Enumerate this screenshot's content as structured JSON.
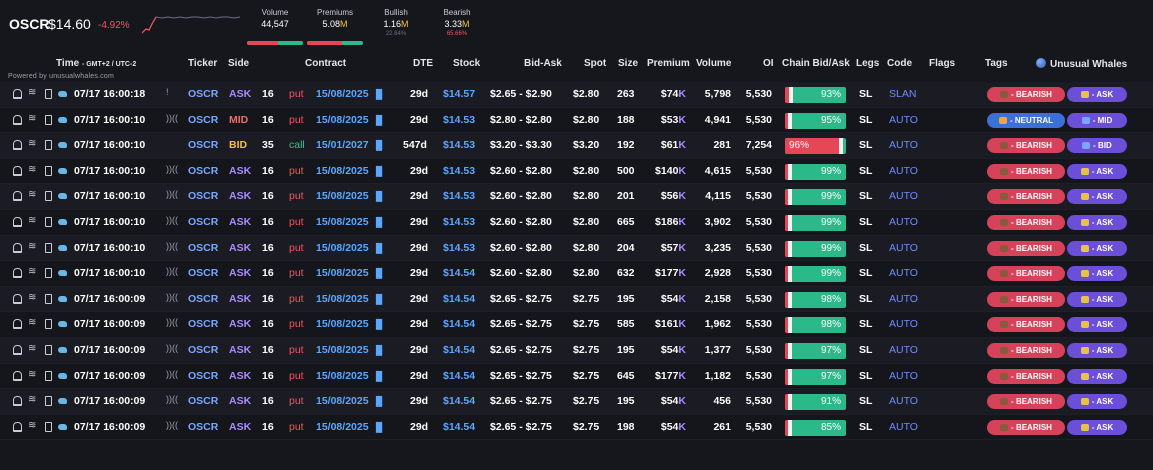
{
  "summary": {
    "ticker": "OSCR",
    "price": "$14.60",
    "change": "-4.92%",
    "stats": [
      {
        "label": "Volume",
        "value": "44,547",
        "unit": "",
        "sub": "",
        "bar_red": 0.55
      },
      {
        "label": "Premiums",
        "value": "5.08",
        "unit": "M",
        "sub": "",
        "bar_red": 0.62
      },
      {
        "label": "Bullish",
        "value": "1.16",
        "unit": "M",
        "sub": "22.84%",
        "bar_red": 0
      },
      {
        "label": "Bearish",
        "value": "3.33",
        "unit": "M",
        "sub": "65.66%",
        "bar_red": 0
      }
    ]
  },
  "header": {
    "time": "Time",
    "time_sub": "- GMT+2 / UTC-2",
    "powered": "Powered by unusualwhales.com",
    "ticker": "Ticker",
    "side": "Side",
    "contract": "Contract",
    "dte": "DTE",
    "stock": "Stock",
    "bid_ask": "Bid-Ask",
    "spot": "Spot",
    "size": "Size",
    "premium": "Premium",
    "volume": "Volume",
    "oi": "OI",
    "chain": "Chain Bid/Ask",
    "legs": "Legs",
    "code": "Code",
    "flags": "Flags",
    "tags": "Tags",
    "brand": "Unusual Whales"
  },
  "colors": {
    "bearish": "#d6425a",
    "neutral": "#3d6fd8",
    "side_tag": "#6c4fd8",
    "chain_green": "#2bb98a",
    "chain_red": "#e54757"
  },
  "rows": [
    {
      "time": "07/17 16:00:18",
      "flag": "!",
      "ticker": "OSCR",
      "side": "ASK",
      "strike": "16",
      "type": "put",
      "exp": "15/08/2025",
      "dte": "29d",
      "stock": "$14.57",
      "bid_ask": "$2.65 - $2.90",
      "spot": "$2.80",
      "size": "263",
      "premium": "$74",
      "premium_unit": "K",
      "volume": "5,798",
      "oi": "5,530",
      "chain": "93%",
      "chain_red": 0.07,
      "legs": "SL",
      "code": "SLAN",
      "sentiment": "BEARISH",
      "side_tag": "ASK"
    },
    {
      "time": "07/17 16:00:10",
      "flag": "))((",
      "ticker": "OSCR",
      "side": "MID",
      "strike": "16",
      "type": "put",
      "exp": "15/08/2025",
      "dte": "29d",
      "stock": "$14.53",
      "bid_ask": "$2.80 - $2.80",
      "spot": "$2.80",
      "size": "188",
      "premium": "$53",
      "premium_unit": "K",
      "volume": "4,941",
      "oi": "5,530",
      "chain": "95%",
      "chain_red": 0.05,
      "legs": "SL",
      "code": "AUTO",
      "sentiment": "NEUTRAL",
      "side_tag": "MID"
    },
    {
      "time": "07/17 16:00:10",
      "flag": "",
      "ticker": "OSCR",
      "side": "BID",
      "strike": "35",
      "type": "call",
      "exp": "15/01/2027",
      "dte": "547d",
      "stock": "$14.53",
      "bid_ask": "$3.20 - $3.30",
      "spot": "$3.20",
      "size": "192",
      "premium": "$61",
      "premium_unit": "K",
      "volume": "281",
      "oi": "7,254",
      "chain": "96%",
      "chain_red": 0.88,
      "legs": "SL",
      "code": "AUTO",
      "sentiment": "BEARISH",
      "side_tag": "BID"
    },
    {
      "time": "07/17 16:00:10",
      "flag": "))((",
      "ticker": "OSCR",
      "side": "ASK",
      "strike": "16",
      "type": "put",
      "exp": "15/08/2025",
      "dte": "29d",
      "stock": "$14.53",
      "bid_ask": "$2.60 - $2.80",
      "spot": "$2.80",
      "size": "500",
      "premium": "$140",
      "premium_unit": "K",
      "volume": "4,615",
      "oi": "5,530",
      "chain": "99%",
      "chain_red": 0.05,
      "legs": "SL",
      "code": "AUTO",
      "sentiment": "BEARISH",
      "side_tag": "ASK"
    },
    {
      "time": "07/17 16:00:10",
      "flag": "))((",
      "ticker": "OSCR",
      "side": "ASK",
      "strike": "16",
      "type": "put",
      "exp": "15/08/2025",
      "dte": "29d",
      "stock": "$14.53",
      "bid_ask": "$2.60 - $2.80",
      "spot": "$2.80",
      "size": "201",
      "premium": "$56",
      "premium_unit": "K",
      "volume": "4,115",
      "oi": "5,530",
      "chain": "99%",
      "chain_red": 0.05,
      "legs": "SL",
      "code": "AUTO",
      "sentiment": "BEARISH",
      "side_tag": "ASK"
    },
    {
      "time": "07/17 16:00:10",
      "flag": "))((",
      "ticker": "OSCR",
      "side": "ASK",
      "strike": "16",
      "type": "put",
      "exp": "15/08/2025",
      "dte": "29d",
      "stock": "$14.53",
      "bid_ask": "$2.60 - $2.80",
      "spot": "$2.80",
      "size": "665",
      "premium": "$186",
      "premium_unit": "K",
      "volume": "3,902",
      "oi": "5,530",
      "chain": "99%",
      "chain_red": 0.05,
      "legs": "SL",
      "code": "AUTO",
      "sentiment": "BEARISH",
      "side_tag": "ASK"
    },
    {
      "time": "07/17 16:00:10",
      "flag": "))((",
      "ticker": "OSCR",
      "side": "ASK",
      "strike": "16",
      "type": "put",
      "exp": "15/08/2025",
      "dte": "29d",
      "stock": "$14.53",
      "bid_ask": "$2.60 - $2.80",
      "spot": "$2.80",
      "size": "204",
      "premium": "$57",
      "premium_unit": "K",
      "volume": "3,235",
      "oi": "5,530",
      "chain": "99%",
      "chain_red": 0.05,
      "legs": "SL",
      "code": "AUTO",
      "sentiment": "BEARISH",
      "side_tag": "ASK"
    },
    {
      "time": "07/17 16:00:10",
      "flag": "))((",
      "ticker": "OSCR",
      "side": "ASK",
      "strike": "16",
      "type": "put",
      "exp": "15/08/2025",
      "dte": "29d",
      "stock": "$14.54",
      "bid_ask": "$2.60 - $2.80",
      "spot": "$2.80",
      "size": "632",
      "premium": "$177",
      "premium_unit": "K",
      "volume": "2,928",
      "oi": "5,530",
      "chain": "99%",
      "chain_red": 0.05,
      "legs": "SL",
      "code": "AUTO",
      "sentiment": "BEARISH",
      "side_tag": "ASK"
    },
    {
      "time": "07/17 16:00:09",
      "flag": "))((",
      "ticker": "OSCR",
      "side": "ASK",
      "strike": "16",
      "type": "put",
      "exp": "15/08/2025",
      "dte": "29d",
      "stock": "$14.54",
      "bid_ask": "$2.65 - $2.75",
      "spot": "$2.75",
      "size": "195",
      "premium": "$54",
      "premium_unit": "K",
      "volume": "2,158",
      "oi": "5,530",
      "chain": "98%",
      "chain_red": 0.05,
      "legs": "SL",
      "code": "AUTO",
      "sentiment": "BEARISH",
      "side_tag": "ASK"
    },
    {
      "time": "07/17 16:00:09",
      "flag": "))((",
      "ticker": "OSCR",
      "side": "ASK",
      "strike": "16",
      "type": "put",
      "exp": "15/08/2025",
      "dte": "29d",
      "stock": "$14.54",
      "bid_ask": "$2.65 - $2.75",
      "spot": "$2.75",
      "size": "585",
      "premium": "$161",
      "premium_unit": "K",
      "volume": "1,962",
      "oi": "5,530",
      "chain": "98%",
      "chain_red": 0.05,
      "legs": "SL",
      "code": "AUTO",
      "sentiment": "BEARISH",
      "side_tag": "ASK"
    },
    {
      "time": "07/17 16:00:09",
      "flag": "))((",
      "ticker": "OSCR",
      "side": "ASK",
      "strike": "16",
      "type": "put",
      "exp": "15/08/2025",
      "dte": "29d",
      "stock": "$14.54",
      "bid_ask": "$2.65 - $2.75",
      "spot": "$2.75",
      "size": "195",
      "premium": "$54",
      "premium_unit": "K",
      "volume": "1,377",
      "oi": "5,530",
      "chain": "97%",
      "chain_red": 0.05,
      "legs": "SL",
      "code": "AUTO",
      "sentiment": "BEARISH",
      "side_tag": "ASK"
    },
    {
      "time": "07/17 16:00:09",
      "flag": "))((",
      "ticker": "OSCR",
      "side": "ASK",
      "strike": "16",
      "type": "put",
      "exp": "15/08/2025",
      "dte": "29d",
      "stock": "$14.54",
      "bid_ask": "$2.65 - $2.75",
      "spot": "$2.75",
      "size": "645",
      "premium": "$177",
      "premium_unit": "K",
      "volume": "1,182",
      "oi": "5,530",
      "chain": "97%",
      "chain_red": 0.05,
      "legs": "SL",
      "code": "AUTO",
      "sentiment": "BEARISH",
      "side_tag": "ASK"
    },
    {
      "time": "07/17 16:00:09",
      "flag": "))((",
      "ticker": "OSCR",
      "side": "ASK",
      "strike": "16",
      "type": "put",
      "exp": "15/08/2025",
      "dte": "29d",
      "stock": "$14.54",
      "bid_ask": "$2.65 - $2.75",
      "spot": "$2.75",
      "size": "195",
      "premium": "$54",
      "premium_unit": "K",
      "volume": "456",
      "oi": "5,530",
      "chain": "91%",
      "chain_red": 0.05,
      "legs": "SL",
      "code": "AUTO",
      "sentiment": "BEARISH",
      "side_tag": "ASK"
    },
    {
      "time": "07/17 16:00:09",
      "flag": "))((",
      "ticker": "OSCR",
      "side": "ASK",
      "strike": "16",
      "type": "put",
      "exp": "15/08/2025",
      "dte": "29d",
      "stock": "$14.54",
      "bid_ask": "$2.65 - $2.75",
      "spot": "$2.75",
      "size": "198",
      "premium": "$54",
      "premium_unit": "K",
      "volume": "261",
      "oi": "5,530",
      "chain": "85%",
      "chain_red": 0.05,
      "legs": "SL",
      "code": "AUTO",
      "sentiment": "BEARISH",
      "side_tag": "ASK"
    }
  ]
}
